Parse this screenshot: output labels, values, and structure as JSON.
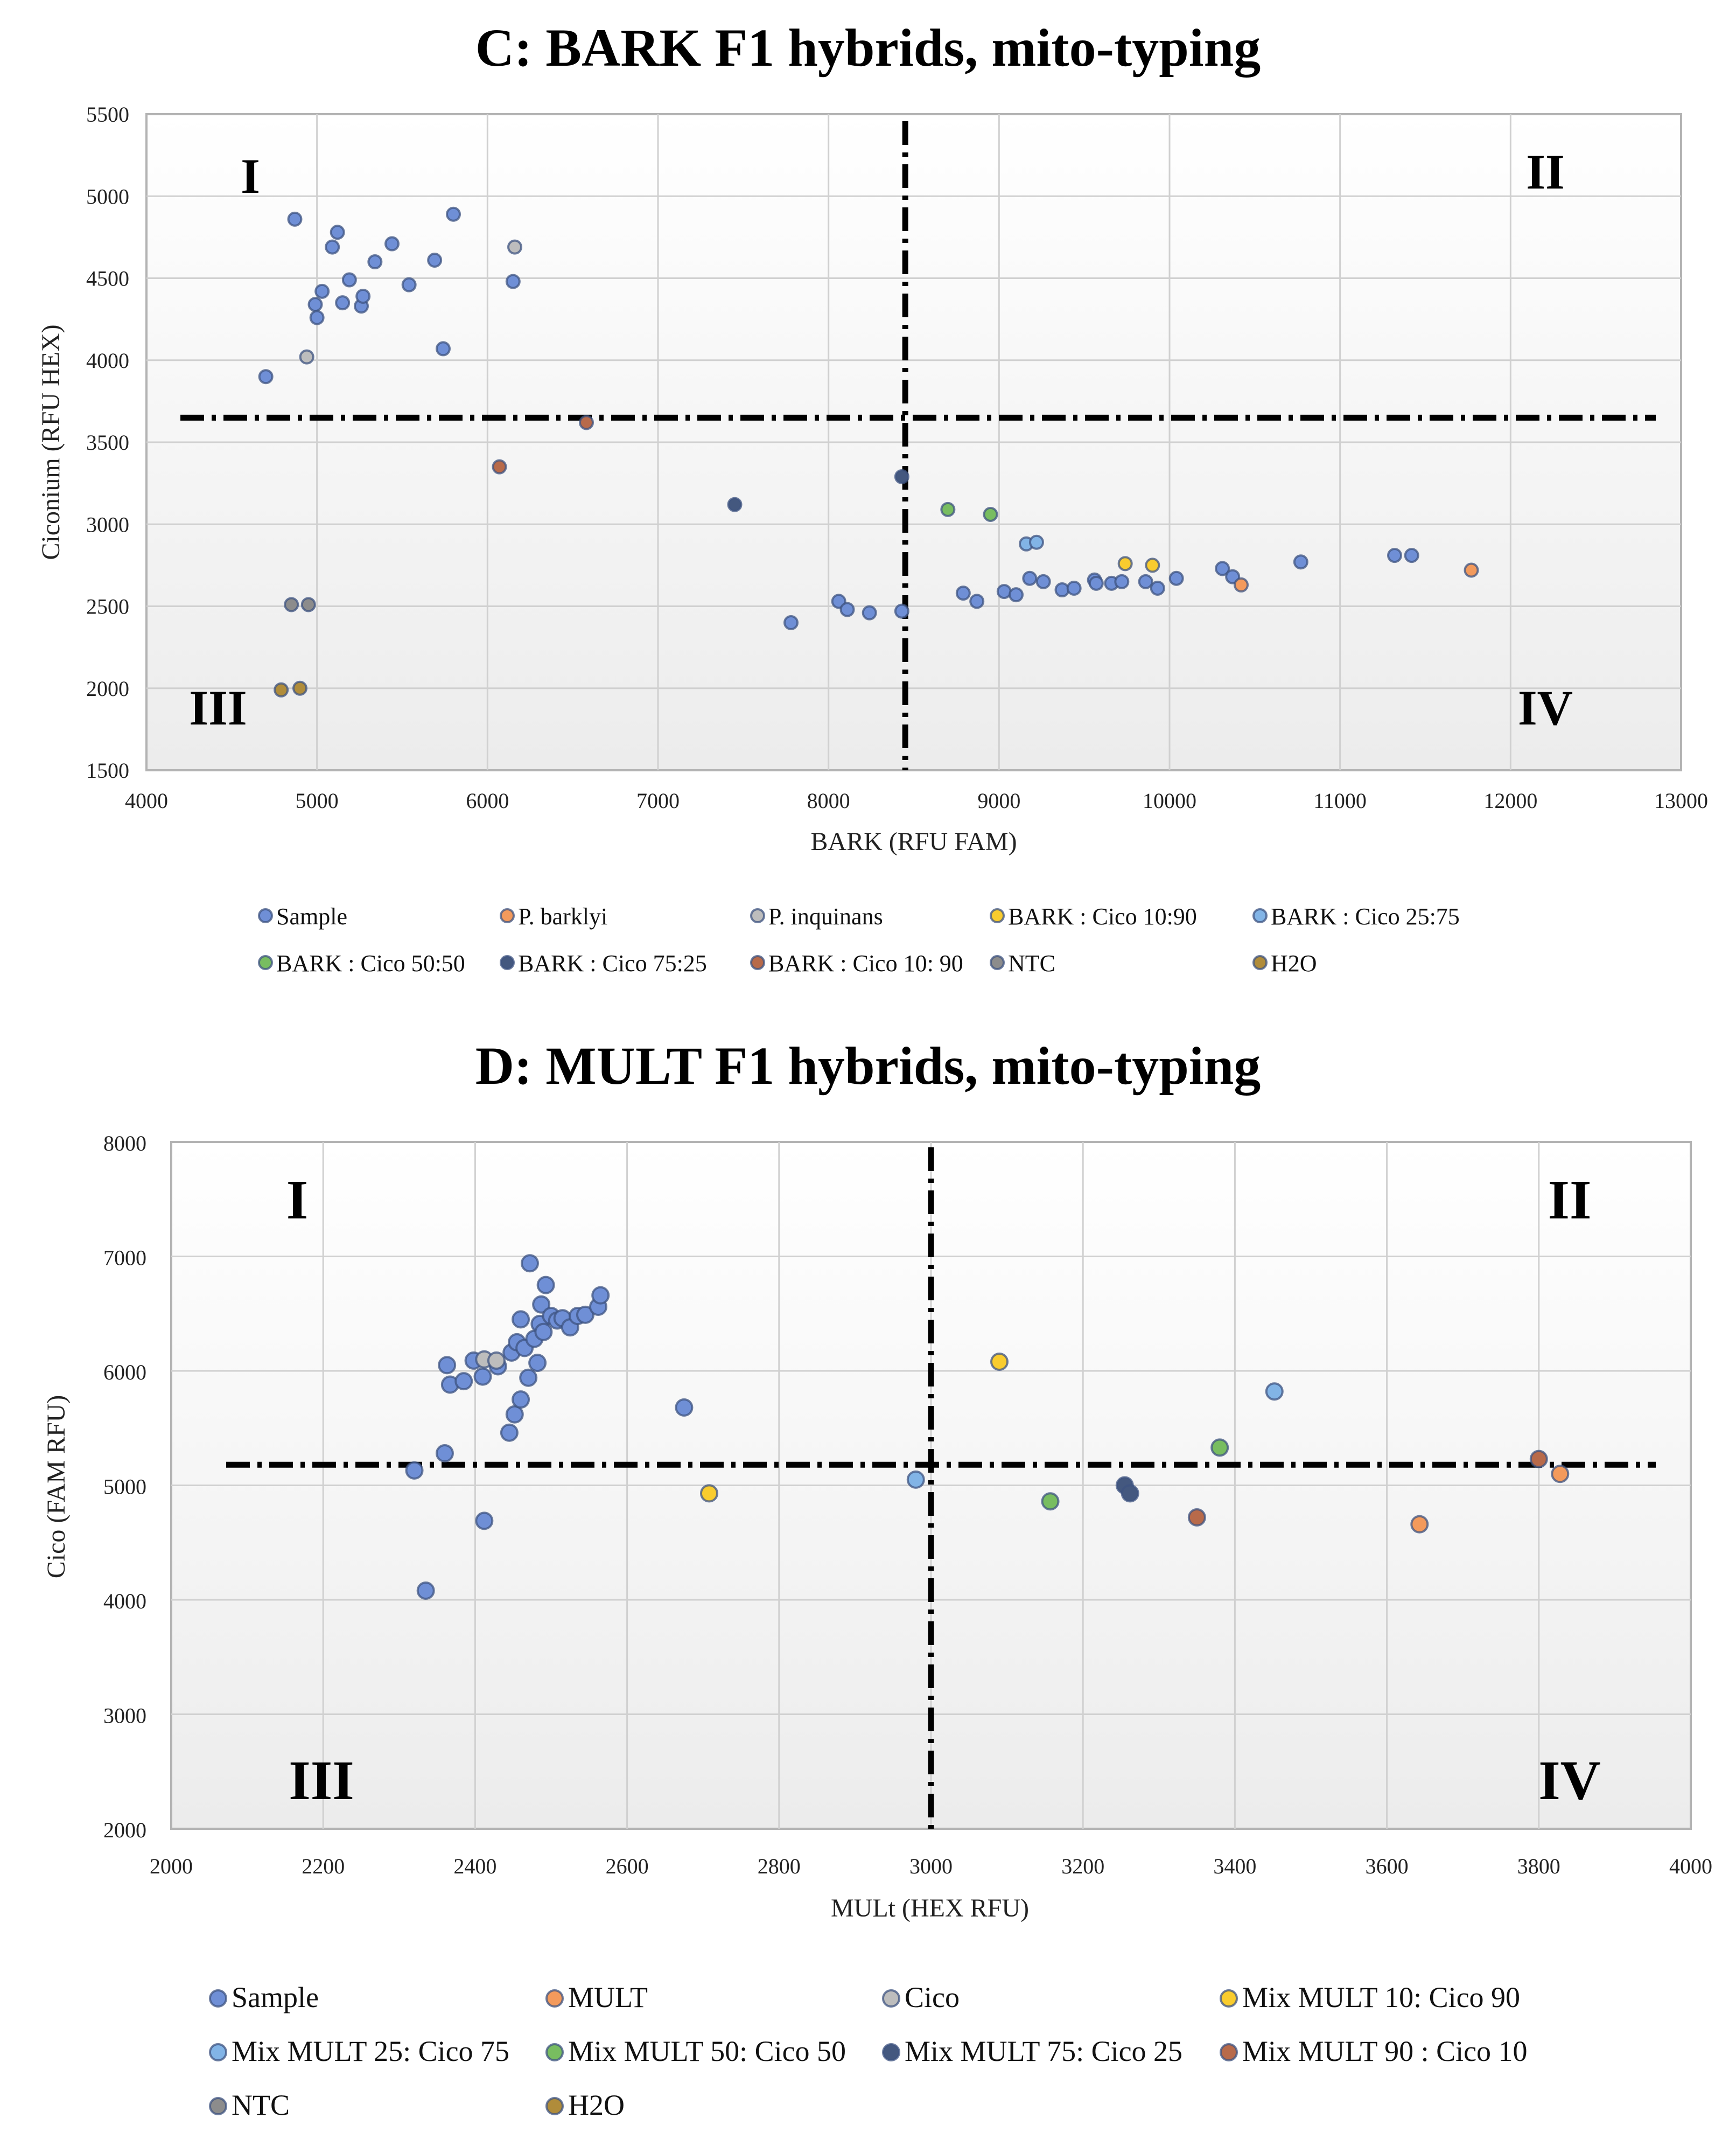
{
  "colors": {
    "Sample": "#6f8fd6",
    "P. barklyi": "#f39a5c",
    "P. inquinans": "#bdbdbd",
    "BARK : Cico 10:90": "#f9cc2e",
    "BARK : Cico 25:75": "#82b4e6",
    "BARK : Cico 50:50": "#78bd60",
    "BARK : Cico 75:25": "#44587f",
    "BARK : Cico 10: 90": "#b86a4a",
    "NTC": "#8c8c8c",
    "H2O": "#b08c3a",
    "MULT": "#f39a5c",
    "Cico": "#bdbdbd",
    "Mix MULT 10: Cico 90": "#f9cc2e",
    "Mix MULT 25: Cico 75": "#82b4e6",
    "Mix MULT 50: Cico 50": "#78bd60",
    "Mix MULT 75: Cico 25": "#44587f",
    "Mix MULT 90 : Cico 10": "#b86a4a"
  },
  "chart_data": [
    {
      "type": "scatter",
      "title": "C: BARK F1 hybrids, mito-typing",
      "xlabel": "BARK (RFU FAM)",
      "ylabel": "Ciconium (RFU HEX)",
      "xlim": [
        4000,
        13000
      ],
      "ylim": [
        1500,
        5500
      ],
      "xticks": [
        4000,
        5000,
        6000,
        7000,
        8000,
        9000,
        10000,
        11000,
        12000,
        13000
      ],
      "yticks": [
        1500,
        2000,
        2500,
        3000,
        3500,
        4000,
        4500,
        5000,
        5500
      ],
      "grid": true,
      "threshold_x": 8450,
      "threshold_y": 3650,
      "quadrants": [
        "I",
        "II",
        "III",
        "IV"
      ],
      "legend": [
        "Sample",
        "P. barklyi",
        "P. inquinans",
        "BARK : Cico 10:90",
        "BARK : Cico 25:75",
        "BARK : Cico 50:50",
        "BARK : Cico 75:25",
        "BARK : Cico 10: 90",
        "NTC",
        "H2O"
      ],
      "series": [
        {
          "name": "Sample",
          "points": [
            [
              4700,
              3900
            ],
            [
              4870,
              4860
            ],
            [
              4990,
              4340
            ],
            [
              5000,
              4260
            ],
            [
              5030,
              4420
            ],
            [
              5090,
              4690
            ],
            [
              5120,
              4780
            ],
            [
              5150,
              4350
            ],
            [
              5190,
              4490
            ],
            [
              5260,
              4330
            ],
            [
              5270,
              4390
            ],
            [
              5340,
              4600
            ],
            [
              5440,
              4710
            ],
            [
              5540,
              4460
            ],
            [
              5690,
              4610
            ],
            [
              5740,
              4070
            ],
            [
              5800,
              4890
            ],
            [
              6150,
              4480
            ],
            [
              7780,
              2400
            ],
            [
              8060,
              2530
            ],
            [
              8110,
              2480
            ],
            [
              8240,
              2460
            ],
            [
              8430,
              2470
            ],
            [
              8790,
              2580
            ],
            [
              8870,
              2530
            ],
            [
              9030,
              2590
            ],
            [
              9100,
              2570
            ],
            [
              9180,
              2670
            ],
            [
              9260,
              2650
            ],
            [
              9370,
              2600
            ],
            [
              9440,
              2610
            ],
            [
              9560,
              2660
            ],
            [
              9570,
              2640
            ],
            [
              9660,
              2640
            ],
            [
              9720,
              2650
            ],
            [
              9860,
              2650
            ],
            [
              9930,
              2610
            ],
            [
              10040,
              2670
            ],
            [
              10310,
              2730
            ],
            [
              10370,
              2680
            ],
            [
              10770,
              2770
            ],
            [
              11320,
              2810
            ],
            [
              11420,
              2810
            ]
          ]
        },
        {
          "name": "P. barklyi",
          "points": [
            [
              10420,
              2630
            ],
            [
              11770,
              2720
            ]
          ]
        },
        {
          "name": "P. inquinans",
          "points": [
            [
              4940,
              4020
            ],
            [
              6160,
              4690
            ]
          ]
        },
        {
          "name": "BARK : Cico 10:90",
          "points": [
            [
              9740,
              2760
            ],
            [
              9900,
              2750
            ]
          ]
        },
        {
          "name": "BARK : Cico 25:75",
          "points": [
            [
              9160,
              2880
            ],
            [
              9220,
              2890
            ]
          ]
        },
        {
          "name": "BARK : Cico 50:50",
          "points": [
            [
              8700,
              3090
            ],
            [
              8950,
              3060
            ]
          ]
        },
        {
          "name": "BARK : Cico 75:25",
          "points": [
            [
              7450,
              3120
            ],
            [
              8430,
              3290
            ]
          ]
        },
        {
          "name": "BARK : Cico 10: 90",
          "points": [
            [
              6070,
              3350
            ],
            [
              6580,
              3620
            ]
          ]
        },
        {
          "name": "NTC",
          "points": [
            [
              4850,
              2510
            ],
            [
              4950,
              2510
            ]
          ]
        },
        {
          "name": "H2O",
          "points": [
            [
              4790,
              1990
            ],
            [
              4900,
              2000
            ]
          ]
        }
      ]
    },
    {
      "type": "scatter",
      "title": "D: MULT F1 hybrids, mito-typing",
      "xlabel": "MULt (HEX RFU)",
      "ylabel": "Cico (FAM RFU)",
      "xlim": [
        2000,
        4000
      ],
      "ylim": [
        2000,
        8000
      ],
      "xticks": [
        2000,
        2200,
        2400,
        2600,
        2800,
        3000,
        3200,
        3400,
        3600,
        3800,
        4000
      ],
      "yticks": [
        2000,
        3000,
        4000,
        5000,
        6000,
        7000,
        8000
      ],
      "grid": true,
      "threshold_x": 3000,
      "threshold_y": 5180,
      "quadrants": [
        "I",
        "II",
        "III",
        "IV"
      ],
      "legend": [
        "Sample",
        "MULT",
        "Cico",
        "Mix MULT 10: Cico 90",
        "Mix MULT 25: Cico 75",
        "Mix MULT 50: Cico 50",
        "Mix MULT 75: Cico 25",
        "Mix MULT 90 : Cico 10",
        "NTC",
        "H2O"
      ],
      "series": [
        {
          "name": "Sample",
          "points": [
            [
              2320,
              5130
            ],
            [
              2335,
              4080
            ],
            [
              2360,
              5280
            ],
            [
              2363,
              6050
            ],
            [
              2367,
              5880
            ],
            [
              2385,
              5910
            ],
            [
              2398,
              6090
            ],
            [
              2410,
              5950
            ],
            [
              2412,
              4690
            ],
            [
              2430,
              6040
            ],
            [
              2445,
              5460
            ],
            [
              2448,
              6160
            ],
            [
              2452,
              5620
            ],
            [
              2455,
              6250
            ],
            [
              2460,
              5750
            ],
            [
              2460,
              6450
            ],
            [
              2465,
              6200
            ],
            [
              2470,
              5940
            ],
            [
              2472,
              6940
            ],
            [
              2478,
              6280
            ],
            [
              2482,
              6070
            ],
            [
              2485,
              6410
            ],
            [
              2487,
              6580
            ],
            [
              2490,
              6340
            ],
            [
              2493,
              6750
            ],
            [
              2500,
              6480
            ],
            [
              2508,
              6440
            ],
            [
              2515,
              6460
            ],
            [
              2525,
              6380
            ],
            [
              2535,
              6480
            ],
            [
              2545,
              6490
            ],
            [
              2562,
              6560
            ],
            [
              2565,
              6660
            ],
            [
              2675,
              5680
            ]
          ]
        },
        {
          "name": "MULT",
          "points": [
            [
              3643,
              4660
            ],
            [
              3828,
              5100
            ]
          ]
        },
        {
          "name": "Cico",
          "points": [
            [
              2412,
              6100
            ],
            [
              2428,
              6090
            ]
          ]
        },
        {
          "name": "Mix MULT 10: Cico 90",
          "points": [
            [
              2708,
              4930
            ],
            [
              3090,
              6080
            ]
          ]
        },
        {
          "name": "Mix MULT 25: Cico 75",
          "points": [
            [
              2980,
              5050
            ],
            [
              3452,
              5820
            ]
          ]
        },
        {
          "name": "Mix MULT 50: Cico 50",
          "points": [
            [
              3157,
              4860
            ],
            [
              3380,
              5330
            ]
          ]
        },
        {
          "name": "Mix MULT 75: Cico 25",
          "points": [
            [
              3255,
              5000
            ],
            [
              3262,
              4930
            ]
          ]
        },
        {
          "name": "Mix MULT 90 : Cico 10",
          "points": [
            [
              3350,
              4720
            ],
            [
              3800,
              5230
            ]
          ]
        },
        {
          "name": "NTC",
          "points": []
        },
        {
          "name": "H2O",
          "points": []
        }
      ]
    }
  ]
}
